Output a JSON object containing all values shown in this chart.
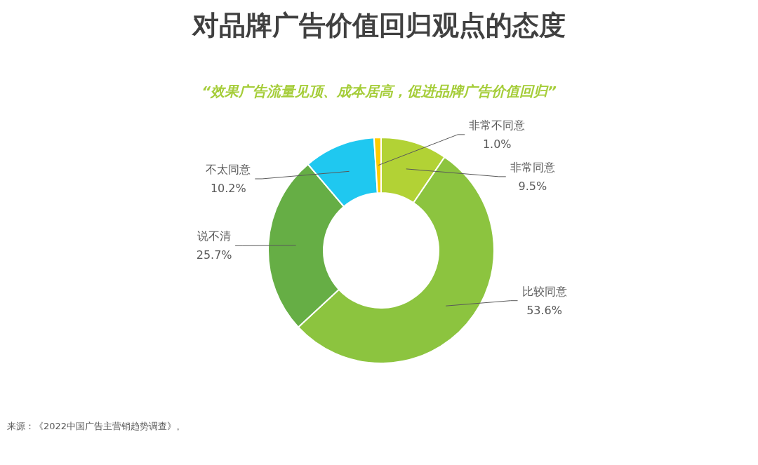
{
  "chart_data": {
    "type": "donut",
    "title": "对品牌广告价值回归观点的态度",
    "subtitle": "“效果广告流量见顶、成本居高，促进品牌广告价值回归”",
    "categories": [
      "非常同意",
      "比较同意",
      "说不清",
      "不太同意",
      "非常不同意"
    ],
    "values": [
      9.5,
      53.6,
      25.7,
      10.2,
      1.0
    ],
    "colors": [
      "#b2d235",
      "#8cc43f",
      "#66ae45",
      "#1fc8f0",
      "#ffcc00"
    ],
    "value_labels": [
      "9.5%",
      "53.6%",
      "25.7%",
      "10.2%",
      "1.0%"
    ],
    "annotations": [
      "来源：《2022中国广告主营销趋势调查》。"
    ]
  }
}
